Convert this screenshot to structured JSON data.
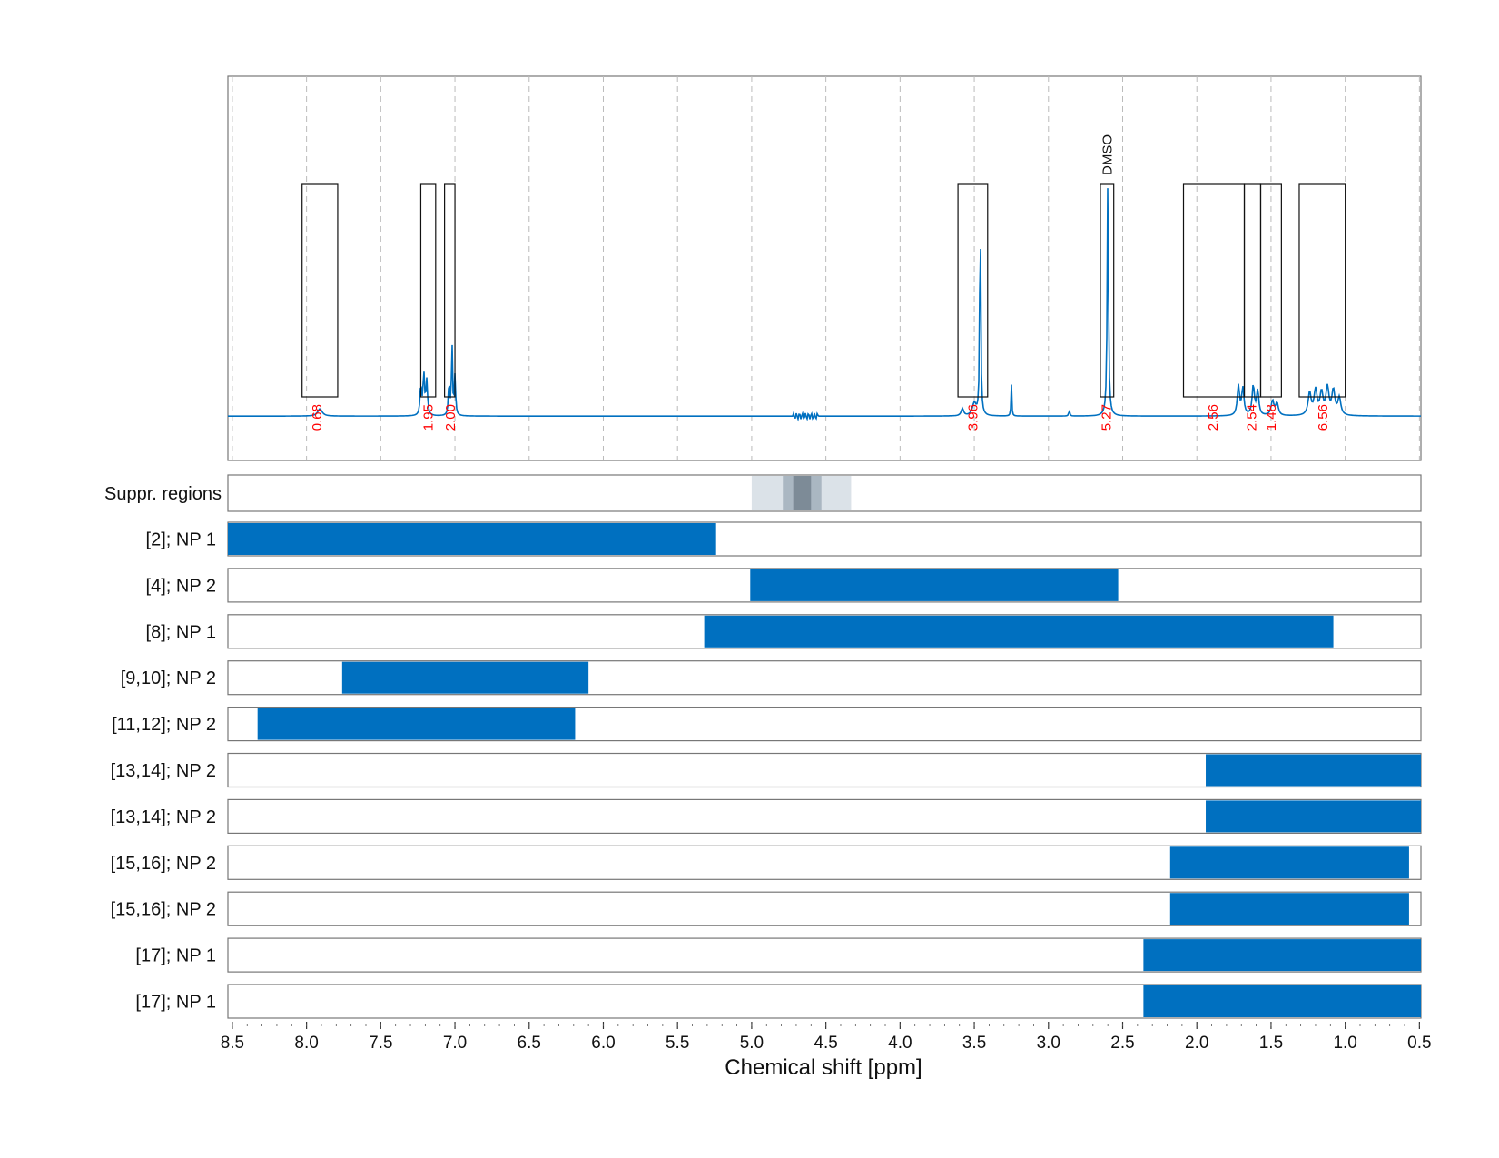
{
  "chart_data": {
    "type": "spectrum-with-range-bars",
    "xlabel": "Chemical shift [ppm]",
    "xlim": [
      8.53,
      0.49
    ],
    "x_reversed": true,
    "x_ticks": [
      "8.5",
      "8.0",
      "7.5",
      "7.0",
      "6.5",
      "6.0",
      "5.5",
      "5.0",
      "4.5",
      "4.0",
      "3.5",
      "3.0",
      "2.5",
      "2.0",
      "1.5",
      "1.0",
      "0.5"
    ],
    "spectrum": {
      "baseline": 0,
      "ylim": [
        -0.18,
        1.38
      ],
      "color": "#0070c0",
      "peaks": [
        {
          "x": 7.91,
          "h": 0.03,
          "w": 0.018
        },
        {
          "x": 7.19,
          "h": 0.14,
          "w": 0.006
        },
        {
          "x": 7.21,
          "h": 0.17,
          "w": 0.006
        },
        {
          "x": 7.23,
          "h": 0.12,
          "w": 0.006
        },
        {
          "x": 7.02,
          "h": 0.3,
          "w": 0.004
        },
        {
          "x": 7.0,
          "h": 0.16,
          "w": 0.005
        },
        {
          "x": 7.04,
          "h": 0.14,
          "w": 0.005
        },
        {
          "x": 3.58,
          "h": 0.03,
          "w": 0.01
        },
        {
          "x": 3.5,
          "h": 0.05,
          "w": 0.015
        },
        {
          "x": 3.46,
          "h": 0.92,
          "w": 0.004
        },
        {
          "x": 3.25,
          "h": 0.13,
          "w": 0.003
        },
        {
          "x": 2.86,
          "h": 0.025,
          "w": 0.004
        },
        {
          "x": 2.6,
          "h": 0.96,
          "w": 0.005
        },
        {
          "x": 1.72,
          "h": 0.12,
          "w": 0.009
        },
        {
          "x": 1.69,
          "h": 0.11,
          "w": 0.009
        },
        {
          "x": 1.62,
          "h": 0.12,
          "w": 0.009
        },
        {
          "x": 1.59,
          "h": 0.1,
          "w": 0.009
        },
        {
          "x": 1.49,
          "h": 0.06,
          "w": 0.011
        },
        {
          "x": 1.46,
          "h": 0.05,
          "w": 0.011
        },
        {
          "x": 1.24,
          "h": 0.09,
          "w": 0.012
        },
        {
          "x": 1.2,
          "h": 0.1,
          "w": 0.012
        },
        {
          "x": 1.16,
          "h": 0.09,
          "w": 0.012
        },
        {
          "x": 1.12,
          "h": 0.11,
          "w": 0.012
        },
        {
          "x": 1.08,
          "h": 0.1,
          "w": 0.012
        },
        {
          "x": 1.04,
          "h": 0.07,
          "w": 0.012
        }
      ],
      "integrals": [
        {
          "x0": 8.03,
          "x1": 7.79,
          "label": "0.68",
          "label_x": 7.93
        },
        {
          "x0": 7.23,
          "x1": 7.13,
          "label": "1.95",
          "label_x": 7.18
        },
        {
          "x0": 7.07,
          "x1": 7.0,
          "label": "2.00",
          "label_x": 7.03
        },
        {
          "x0": 3.61,
          "x1": 3.41,
          "label": "3.96",
          "label_x": 3.51
        },
        {
          "x0": 2.65,
          "x1": 2.56,
          "label": "5.27",
          "label_x": 2.61
        },
        {
          "x0": 2.09,
          "x1": 1.68,
          "label": "2.56",
          "label_x": 1.89
        },
        {
          "x0": 1.68,
          "x1": 1.57,
          "label": "2.54",
          "label_x": 1.63
        },
        {
          "x0": 1.57,
          "x1": 1.43,
          "label": "1.48",
          "label_x": 1.5
        },
        {
          "x0": 1.31,
          "x1": 1.0,
          "label": "6.56",
          "label_x": 1.15
        }
      ],
      "annotation": {
        "text": "DMSO",
        "x": 2.61
      }
    },
    "suppression_regions": {
      "label": "Suppr. regions",
      "bands": [
        {
          "x0": 5.0,
          "x1": 4.33,
          "shade": "#dbe2e8"
        },
        {
          "x0": 4.79,
          "x1": 4.53,
          "shade": "#aab7c2"
        },
        {
          "x0": 4.72,
          "x1": 4.6,
          "shade": "#7d8b97"
        }
      ]
    },
    "range_bars": [
      {
        "label": "[2]; NP 1",
        "x0": 8.53,
        "x1": 5.24
      },
      {
        "label": "[4]; NP 2",
        "x0": 5.01,
        "x1": 2.53
      },
      {
        "label": "[8]; NP 1",
        "x0": 5.32,
        "x1": 1.08
      },
      {
        "label": "[9,10]; NP 2",
        "x0": 7.76,
        "x1": 6.1
      },
      {
        "label": "[11,12]; NP 2",
        "x0": 8.33,
        "x1": 6.19
      },
      {
        "label": "[13,14]; NP 2",
        "x0": 1.94,
        "x1": 0.49
      },
      {
        "label": "[13,14]; NP 2",
        "x0": 1.94,
        "x1": 0.49
      },
      {
        "label": "[15,16]; NP 2",
        "x0": 2.18,
        "x1": 0.57
      },
      {
        "label": "[15,16]; NP 2",
        "x0": 2.18,
        "x1": 0.57
      },
      {
        "label": "[17]; NP 1",
        "x0": 2.36,
        "x1": 0.49
      },
      {
        "label": "[17]; NP 1",
        "x0": 2.36,
        "x1": 0.49
      }
    ],
    "colors": {
      "bar": "#0070c0",
      "integral_label": "#ff0000",
      "grid": "#bbbbbb"
    }
  }
}
